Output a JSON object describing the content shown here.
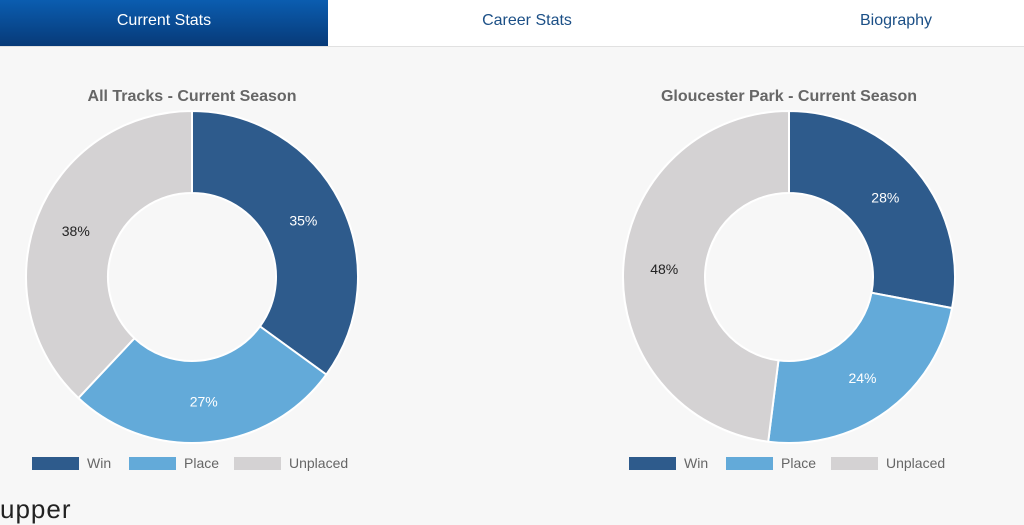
{
  "tabs": [
    {
      "label": "Current Stats",
      "active": true
    },
    {
      "label": "Career Stats",
      "active": false
    },
    {
      "label": "Biography",
      "active": false
    }
  ],
  "legend": [
    "Win",
    "Place",
    "Unplaced"
  ],
  "colors": {
    "win": "#2e5b8c",
    "place": "#63aad9",
    "unplaced": "#d4d2d3",
    "accent": "#0a4d9a"
  },
  "chart_data": [
    {
      "type": "pie",
      "title": "All Tracks - Current Season",
      "categories": [
        "Win",
        "Place",
        "Unplaced"
      ],
      "values": [
        35,
        27,
        38
      ],
      "labels": [
        "35%",
        "27%",
        "38%"
      ],
      "donut": true,
      "legend": "bottom"
    },
    {
      "type": "pie",
      "title": "Gloucester Park - Current Season",
      "categories": [
        "Win",
        "Place",
        "Unplaced"
      ],
      "values": [
        28,
        24,
        48
      ],
      "labels": [
        "28%",
        "24%",
        "48%"
      ],
      "donut": true,
      "legend": "bottom"
    }
  ],
  "footer_text": "upper"
}
